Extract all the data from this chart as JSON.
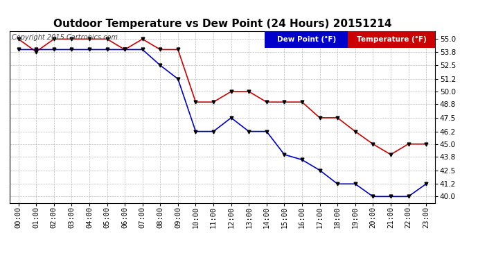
{
  "title": "Outdoor Temperature vs Dew Point (24 Hours) 20151214",
  "copyright_text": "Copyright 2015 Cartronics.com",
  "hours": [
    "00:00",
    "01:00",
    "02:00",
    "03:00",
    "04:00",
    "05:00",
    "06:00",
    "07:00",
    "08:00",
    "09:00",
    "10:00",
    "11:00",
    "12:00",
    "13:00",
    "14:00",
    "15:00",
    "16:00",
    "17:00",
    "18:00",
    "19:00",
    "20:00",
    "21:00",
    "22:00",
    "23:00"
  ],
  "temperature": [
    55.0,
    53.8,
    55.0,
    55.0,
    55.0,
    55.0,
    54.0,
    55.0,
    54.0,
    54.0,
    49.0,
    49.0,
    50.0,
    50.0,
    49.0,
    49.0,
    49.0,
    47.5,
    47.5,
    46.2,
    45.0,
    44.0,
    45.0,
    45.0
  ],
  "dew_point": [
    54.0,
    54.0,
    54.0,
    54.0,
    54.0,
    54.0,
    54.0,
    54.0,
    52.5,
    51.2,
    46.2,
    46.2,
    47.5,
    46.2,
    46.2,
    44.0,
    43.5,
    42.5,
    41.2,
    41.2,
    40.0,
    40.0,
    40.0,
    41.2
  ],
  "temp_color": "#cc0000",
  "dew_color": "#0000cc",
  "marker_color": "#000000",
  "ylim_min": 39.4,
  "ylim_max": 55.75,
  "yticks": [
    40.0,
    41.2,
    42.5,
    43.8,
    45.0,
    46.2,
    47.5,
    48.8,
    50.0,
    51.2,
    52.5,
    53.8,
    55.0
  ],
  "legend_dew_bg": "#0000cc",
  "legend_temp_bg": "#cc0000",
  "legend_text_color": "#ffffff",
  "background_color": "#ffffff",
  "grid_color": "#aaaaaa",
  "title_fontsize": 11,
  "copyright_fontsize": 7,
  "tick_fontsize": 7.5,
  "legend_fontsize": 7.5,
  "marker_size": 3.5,
  "line_width": 1.2
}
